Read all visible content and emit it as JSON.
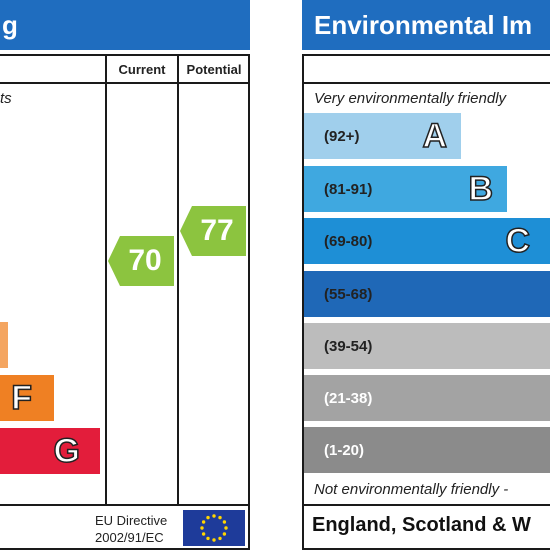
{
  "left_panel": {
    "title_fragment": "g",
    "headers": {
      "current": "Current",
      "potential": "Potential"
    },
    "top_caption_fragment": "ts",
    "bands": [
      {
        "letter": "",
        "color": "#f4a560"
      },
      {
        "letter": "F",
        "color": "#ef8023"
      },
      {
        "letter": "G",
        "color": "#e31d3b"
      }
    ],
    "current_rating": {
      "value": "70",
      "color": "#8cc43f"
    },
    "potential_rating": {
      "value": "77",
      "color": "#8cc43f"
    },
    "eu_directive": {
      "line1": "EU Directive",
      "line2": "2002/91/EC"
    }
  },
  "right_panel": {
    "title": "Environmental Im",
    "top_caption": "Very environmentally friendly",
    "bottom_caption": "Not environmentally friendly -",
    "footer": "England, Scotland & W",
    "bands": [
      {
        "range": "(92+)",
        "letter": "A",
        "color": "#a0cfec",
        "range_color": "#222222"
      },
      {
        "range": "(81-91)",
        "letter": "B",
        "color": "#3fa8e0",
        "range_color": "#222222"
      },
      {
        "range": "(69-80)",
        "letter": "C",
        "color": "#1e8fd6",
        "range_color": "#222222"
      },
      {
        "range": "(55-68)",
        "letter": "",
        "color": "#1f68b7",
        "range_color": "#222222"
      },
      {
        "range": "(39-54)",
        "letter": "",
        "color": "#bcbcbc",
        "range_color": "#222222"
      },
      {
        "range": "(21-38)",
        "letter": "",
        "color": "#a3a3a3",
        "range_color": "#ffffff"
      },
      {
        "range": "(1-20)",
        "letter": "",
        "color": "#8b8b8b",
        "range_color": "#ffffff"
      }
    ]
  }
}
